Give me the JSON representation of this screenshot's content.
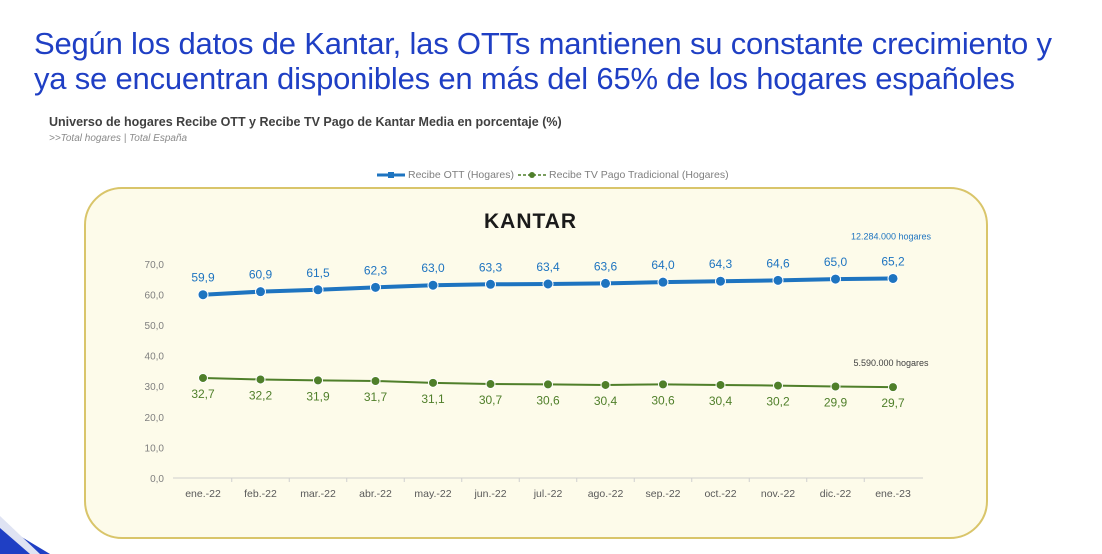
{
  "header": {
    "title": "Según los datos de Kantar, las OTTs mantienen su constante crecimiento y ya se encuentran disponibles en más del 65% de los hogares españoles",
    "subtitle": "Universo de hogares Recibe OTT y Recibe TV Pago de Kantar Media en porcentaje (%)",
    "note": ">>Total hogares | Total España"
  },
  "brand": {
    "name": "KANTAR"
  },
  "chart_data": {
    "type": "line",
    "title": "Universo de hogares Recibe OTT y Recibe TV Pago de Kantar Media en porcentaje (%)",
    "categories": [
      "ene.-22",
      "feb.-22",
      "mar.-22",
      "abr.-22",
      "may.-22",
      "jun.-22",
      "jul.-22",
      "ago.-22",
      "sep.-22",
      "oct.-22",
      "nov.-22",
      "dic.-22",
      "ene.-23"
    ],
    "y_ticks": [
      "0,0",
      "10,0",
      "20,0",
      "30,0",
      "40,0",
      "50,0",
      "60,0",
      "70,0"
    ],
    "ylim": [
      0,
      70
    ],
    "legend_position": "top-center",
    "series": [
      {
        "name": "Recibe OTT (Hogares)",
        "color": "#1e74c0",
        "values": [
          59.9,
          60.9,
          61.5,
          62.3,
          63.0,
          63.3,
          63.4,
          63.6,
          64.0,
          64.3,
          64.6,
          65.0,
          65.2
        ],
        "labels": [
          "59,9",
          "60,9",
          "61,5",
          "62,3",
          "63,0",
          "63,3",
          "63,4",
          "63,6",
          "64,0",
          "64,3",
          "64,6",
          "65,0",
          "65,2"
        ],
        "annotation": "12.284.000 hogares"
      },
      {
        "name": "Recibe TV Pago Tradicional (Hogares)",
        "color": "#4f7f2a",
        "values": [
          32.7,
          32.2,
          31.9,
          31.7,
          31.1,
          30.7,
          30.6,
          30.4,
          30.6,
          30.4,
          30.2,
          29.9,
          29.7
        ],
        "labels": [
          "32,7",
          "32,2",
          "31,9",
          "31,7",
          "31,1",
          "30,7",
          "30,6",
          "30,4",
          "30,6",
          "30,4",
          "30,2",
          "29,9",
          "29,7"
        ],
        "annotation": "5.590.000 hogares"
      }
    ]
  }
}
